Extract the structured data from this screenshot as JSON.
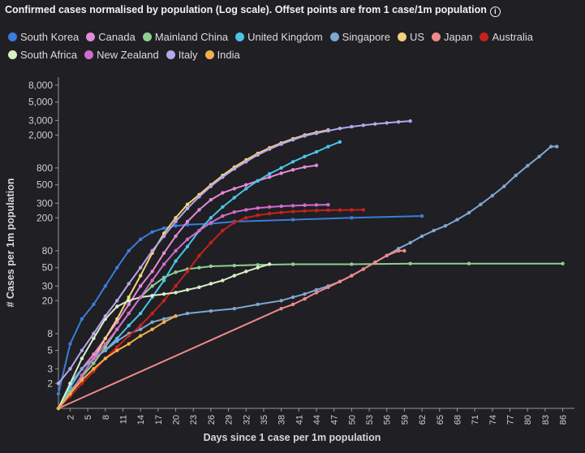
{
  "title": "Confirmed cases normalised by population (Log scale). Offset points are from 1 case/1m population",
  "info_icon": "info-icon",
  "legend_rows": [
    [
      "South Korea",
      "Canada",
      "Mainland China",
      "United Kingdom",
      "Singapore",
      "US",
      "Japan",
      "Australia"
    ],
    [
      "South Africa",
      "New Zealand",
      "Italy",
      "India"
    ]
  ],
  "chart_data": {
    "type": "line",
    "xlabel": "Days since 1 case per 1m population",
    "ylabel": "# Cases per 1m population",
    "y_scale": "log",
    "ylim": [
      1,
      10000
    ],
    "xlim": [
      0,
      88
    ],
    "x_ticks": [
      2,
      5,
      8,
      11,
      14,
      17,
      20,
      23,
      26,
      29,
      32,
      35,
      38,
      41,
      44,
      47,
      50,
      53,
      56,
      59,
      62,
      65,
      68,
      71,
      74,
      77,
      80,
      83,
      86
    ],
    "y_ticks": [
      2,
      3,
      5,
      8,
      20,
      30,
      50,
      80,
      200,
      300,
      500,
      800,
      2000,
      3000,
      5000,
      8000
    ],
    "y_tick_labels": [
      "2",
      "3",
      "5",
      "8",
      "20",
      "30",
      "50",
      "80",
      "200",
      "300",
      "500",
      "800",
      "2,000",
      "3,000",
      "5,000",
      "8,000"
    ],
    "grid": false,
    "legend_position": "top",
    "series": [
      {
        "name": "South Korea",
        "color": "#3b7dd8",
        "x": [
          0,
          2,
          4,
          6,
          8,
          10,
          12,
          14,
          16,
          18,
          20,
          22,
          26,
          30,
          40,
          50,
          62
        ],
        "y": [
          1.5,
          6,
          12,
          18,
          30,
          50,
          80,
          110,
          135,
          150,
          160,
          165,
          170,
          180,
          190,
          200,
          210
        ]
      },
      {
        "name": "Canada",
        "color": "#e58ad8",
        "x": [
          0,
          2,
          4,
          6,
          8,
          10,
          12,
          14,
          16,
          18,
          20,
          22,
          24,
          26,
          28,
          30,
          32,
          34,
          36,
          38,
          40,
          42,
          44
        ],
        "y": [
          1,
          1.8,
          3,
          4.5,
          7,
          11,
          18,
          30,
          45,
          75,
          120,
          180,
          250,
          330,
          400,
          450,
          500,
          560,
          620,
          690,
          760,
          820,
          860
        ]
      },
      {
        "name": "Mainland China",
        "color": "#8fcf8f",
        "x": [
          0,
          2,
          4,
          6,
          8,
          10,
          12,
          14,
          16,
          18,
          20,
          22,
          24,
          26,
          30,
          34,
          40,
          50,
          60,
          70,
          86
        ],
        "y": [
          1,
          1.6,
          2.4,
          3.5,
          5.5,
          9,
          14,
          22,
          30,
          38,
          44,
          48,
          50,
          52,
          53,
          54,
          55,
          55,
          56,
          56,
          56
        ]
      },
      {
        "name": "United Kingdom",
        "color": "#4dc3e6",
        "x": [
          0,
          2,
          4,
          6,
          8,
          10,
          12,
          14,
          16,
          18,
          20,
          22,
          24,
          26,
          28,
          30,
          32,
          34,
          36,
          38,
          40,
          42,
          44,
          46,
          48
        ],
        "y": [
          1,
          1.8,
          3,
          4,
          5,
          7,
          10,
          14,
          22,
          35,
          60,
          90,
          140,
          200,
          270,
          350,
          450,
          560,
          680,
          800,
          950,
          1100,
          1250,
          1450,
          1650
        ]
      },
      {
        "name": "Singapore",
        "color": "#7fa7d1",
        "x": [
          0,
          2,
          4,
          6,
          8,
          10,
          12,
          14,
          16,
          18,
          20,
          22,
          26,
          30,
          34,
          38,
          40,
          42,
          44,
          46,
          48,
          50,
          52,
          54,
          56,
          58,
          60,
          62,
          64,
          66,
          68,
          70,
          72,
          74,
          76,
          78,
          80,
          82,
          84,
          85
        ],
        "y": [
          1,
          2,
          3,
          4,
          5,
          6.5,
          8,
          9,
          11,
          12,
          13,
          14,
          15,
          16,
          18,
          20,
          22,
          24,
          27,
          30,
          34,
          40,
          48,
          58,
          70,
          85,
          100,
          120,
          140,
          160,
          190,
          230,
          290,
          370,
          480,
          650,
          850,
          1100,
          1450,
          1450
        ]
      },
      {
        "name": "US",
        "color": "#f2d27a",
        "x": [
          0,
          2,
          4,
          6,
          8,
          10,
          12,
          14,
          16,
          18,
          20,
          22,
          24,
          26,
          28,
          30,
          32,
          34,
          36,
          38,
          40,
          42,
          44,
          46
        ],
        "y": [
          1,
          1.5,
          2.5,
          4,
          7,
          12,
          22,
          40,
          75,
          130,
          200,
          290,
          380,
          500,
          650,
          820,
          1000,
          1200,
          1400,
          1600,
          1800,
          2000,
          2150,
          2300
        ]
      },
      {
        "name": "Japan",
        "color": "#ef8a8a",
        "x": [
          0,
          38,
          40,
          42,
          44,
          46,
          48,
          50,
          52,
          54,
          56,
          58,
          59
        ],
        "y": [
          1,
          16,
          18,
          21,
          25,
          29,
          34,
          40,
          48,
          58,
          70,
          80,
          80
        ]
      },
      {
        "name": "Australia",
        "color": "#c4221c",
        "x": [
          0,
          2,
          4,
          6,
          8,
          10,
          12,
          14,
          16,
          18,
          20,
          22,
          24,
          26,
          28,
          30,
          32,
          34,
          36,
          38,
          40,
          42,
          44,
          46,
          48,
          50,
          52
        ],
        "y": [
          1,
          1.4,
          2,
          2.8,
          4,
          5.5,
          7.5,
          10,
          14,
          20,
          30,
          45,
          70,
          100,
          140,
          175,
          200,
          215,
          225,
          232,
          238,
          242,
          245,
          247,
          248,
          249,
          250
        ]
      },
      {
        "name": "South Africa",
        "color": "#d8efc5",
        "x": [
          0,
          2,
          4,
          6,
          8,
          10,
          12,
          14,
          16,
          18,
          20,
          22,
          24,
          26,
          28,
          30,
          32,
          34,
          36
        ],
        "y": [
          1,
          2,
          4,
          7,
          12,
          17,
          20,
          22,
          23,
          24,
          25,
          27,
          29,
          32,
          35,
          40,
          45,
          50,
          55
        ]
      },
      {
        "name": "New Zealand",
        "color": "#d36bcc",
        "x": [
          0,
          2,
          4,
          6,
          8,
          10,
          12,
          14,
          16,
          18,
          20,
          22,
          24,
          26,
          28,
          30,
          32,
          34,
          36,
          38,
          40,
          42,
          44,
          46
        ],
        "y": [
          1,
          1.5,
          2.5,
          4,
          6,
          9,
          14,
          22,
          35,
          55,
          80,
          110,
          140,
          175,
          210,
          235,
          250,
          262,
          270,
          276,
          280,
          284,
          286,
          288
        ]
      },
      {
        "name": "Italy",
        "color": "#b6a6ea",
        "x": [
          0,
          2,
          4,
          6,
          8,
          10,
          12,
          14,
          16,
          18,
          20,
          22,
          24,
          26,
          28,
          30,
          32,
          34,
          36,
          38,
          40,
          42,
          44,
          46,
          48,
          50,
          52,
          54,
          56,
          58,
          60
        ],
        "y": [
          2,
          3,
          5,
          8,
          13,
          20,
          32,
          50,
          80,
          120,
          180,
          260,
          360,
          480,
          620,
          780,
          950,
          1150,
          1350,
          1550,
          1750,
          1950,
          2100,
          2250,
          2400,
          2520,
          2620,
          2720,
          2800,
          2880,
          2950
        ]
      },
      {
        "name": "India",
        "color": "#f1b04a",
        "x": [
          0,
          2,
          4,
          6,
          8,
          10,
          12,
          14,
          16,
          18,
          20
        ],
        "y": [
          1,
          1.5,
          2.2,
          3,
          4,
          5,
          6,
          7.5,
          9,
          11,
          13
        ]
      }
    ]
  }
}
